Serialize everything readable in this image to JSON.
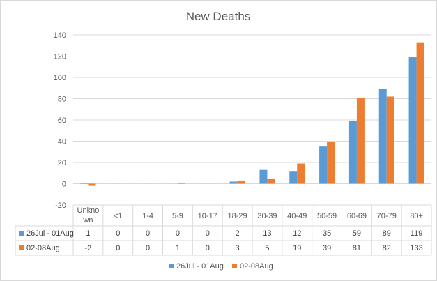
{
  "chart_data": {
    "type": "bar",
    "title": "New Deaths",
    "xlabel": "",
    "ylabel": "",
    "ylim": [
      -20,
      140
    ],
    "yticks": [
      -20,
      0,
      20,
      40,
      60,
      80,
      100,
      120,
      140
    ],
    "grid": true,
    "legend": "bottom",
    "data_table": true,
    "categories": [
      "Unknown",
      "<1",
      "1-4",
      "5-9",
      "10-17",
      "18-29",
      "30-39",
      "40-49",
      "50-59",
      "60-69",
      "70-79",
      "80+"
    ],
    "category_display": [
      [
        "Unkno",
        "wn"
      ],
      [
        "<1"
      ],
      [
        "1-4"
      ],
      [
        "5-9"
      ],
      [
        "10-17"
      ],
      [
        "18-29"
      ],
      [
        "30-39"
      ],
      [
        "40-49"
      ],
      [
        "50-59"
      ],
      [
        "60-69"
      ],
      [
        "70-79"
      ],
      [
        "80+"
      ]
    ],
    "series": [
      {
        "name": "26Jul - 01Aug",
        "color": "#5b9bd5",
        "values": [
          1,
          0,
          0,
          0,
          0,
          2,
          13,
          12,
          35,
          59,
          89,
          119
        ]
      },
      {
        "name": "02-08Aug",
        "color": "#ed7d31",
        "values": [
          -2,
          0,
          0,
          1,
          0,
          3,
          5,
          19,
          39,
          81,
          82,
          133
        ]
      }
    ]
  }
}
